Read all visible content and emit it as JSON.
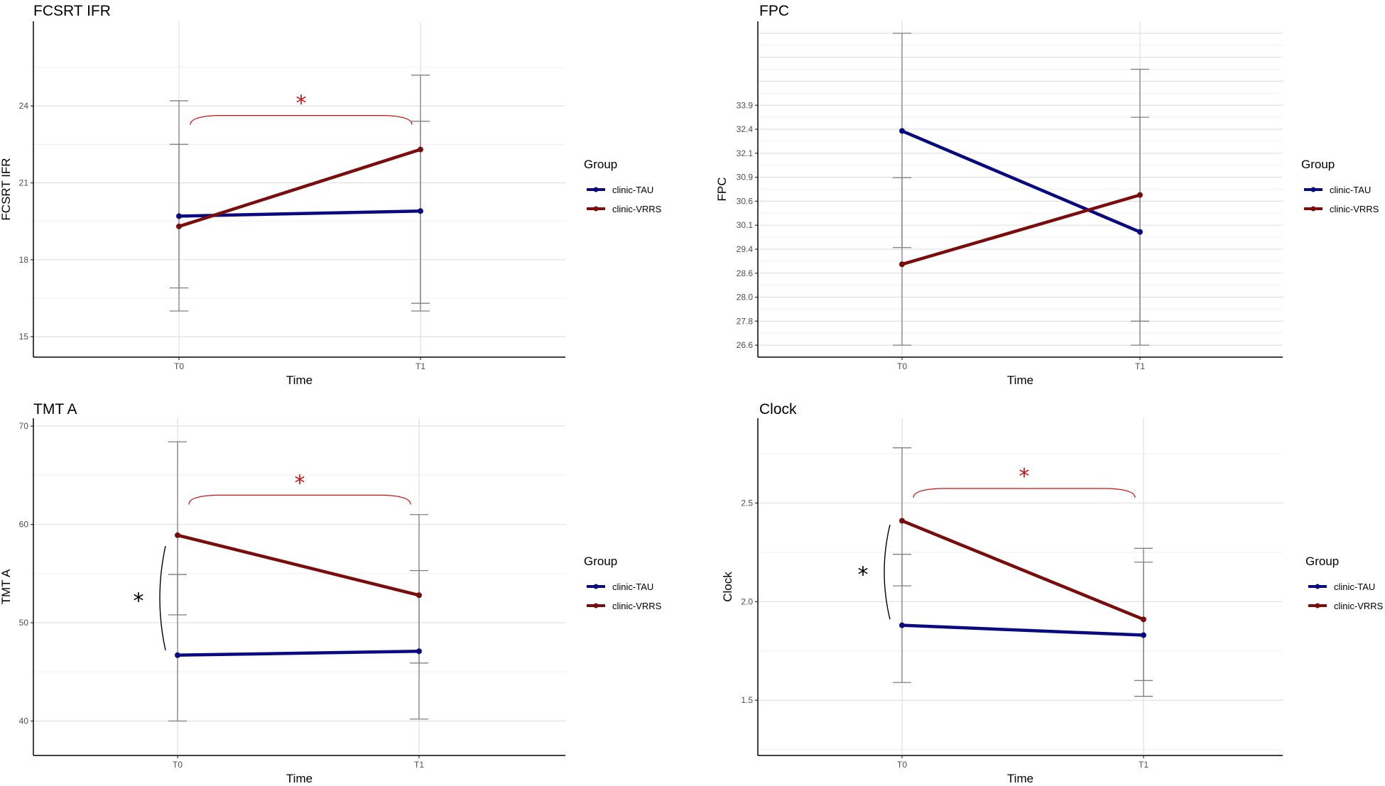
{
  "colors": {
    "clinic-TAU": "#0a0a80",
    "clinic-VRRS": "#7a0c0c",
    "errorbar": "#808080",
    "grid_major": "#e0e0e0",
    "grid_minor": "#f0f0f0",
    "sig_red": "#cc1111",
    "sig_black": "#000000"
  },
  "legend": {
    "title": "Group",
    "entries": [
      "clinic-TAU",
      "clinic-VRRS"
    ]
  },
  "chart_data": [
    {
      "type": "line",
      "title": "FCSRT IFR",
      "xlabel": "Time",
      "ylabel": "FCSRT IFR",
      "categories": [
        "T0",
        "T1"
      ],
      "ylim": [
        14.2,
        27.3
      ],
      "yticks": [
        15,
        18,
        21,
        24
      ],
      "ytick_labels": [
        "15",
        "18",
        "21",
        "24"
      ],
      "series": [
        {
          "name": "clinic-TAU",
          "values": [
            19.7,
            19.9
          ],
          "err_low": [
            16.9,
            16.3
          ],
          "err_high": [
            22.5,
            23.4
          ]
        },
        {
          "name": "clinic-VRRS",
          "values": [
            19.3,
            22.3
          ],
          "err_low": [
            16.0,
            16.0
          ],
          "err_high": [
            24.2,
            25.2
          ]
        }
      ],
      "annotations": [
        {
          "type": "bracket_h",
          "from": "T0",
          "to": "T1",
          "y": 23.6,
          "label": "*",
          "color": "sig_red"
        }
      ]
    },
    {
      "type": "line",
      "title": "FPC",
      "xlabel": "Time",
      "ylabel": "FPC",
      "categories": [
        "T0",
        "T1"
      ],
      "ylim": [
        0,
        14
      ],
      "yticks": [
        0.5,
        1.5,
        2.5,
        3.5,
        4.5,
        5.5,
        6.5,
        7.5,
        8.5,
        9.5,
        10.5,
        11.5,
        12.5,
        13.5
      ],
      "ytick_labels": [
        "26.6",
        "27.8",
        "28.0",
        "28.6",
        "29.4",
        "30.1",
        "30.6",
        "30.9",
        "32.1",
        "32.4",
        "33.9",
        "",
        "",
        ""
      ],
      "series": [
        {
          "name": "clinic-TAU",
          "values": [
            9.43,
            5.22
          ],
          "err_low": [
            4.57,
            0.5
          ],
          "err_high": [
            13.5,
            12.0
          ]
        },
        {
          "name": "clinic-VRRS",
          "values": [
            3.87,
            6.76
          ],
          "err_low": [
            0.5,
            1.5
          ],
          "err_high": [
            7.48,
            10.0
          ]
        }
      ],
      "annotations": []
    },
    {
      "type": "line",
      "title": "TMT A",
      "xlabel": "Time",
      "ylabel": "TMT A",
      "categories": [
        "T0",
        "T1"
      ],
      "ylim": [
        36.5,
        70.8
      ],
      "yticks": [
        40,
        50,
        60,
        70
      ],
      "ytick_labels": [
        "40",
        "50",
        "60",
        "70"
      ],
      "series": [
        {
          "name": "clinic-TAU",
          "values": [
            46.7,
            47.1
          ],
          "err_low": [
            40.0,
            40.2
          ],
          "err_high": [
            54.9,
            55.3
          ]
        },
        {
          "name": "clinic-VRRS",
          "values": [
            58.9,
            52.8
          ],
          "err_low": [
            50.8,
            45.9
          ],
          "err_high": [
            68.4,
            61.0
          ]
        }
      ],
      "annotations": [
        {
          "type": "bracket_h",
          "from": "T0",
          "to": "T1",
          "y": 62.9,
          "label": "*",
          "color": "sig_red"
        },
        {
          "type": "bracket_v",
          "at": "T0",
          "y_from": 47.2,
          "y_to": 57.8,
          "label": "*",
          "color": "sig_black"
        }
      ]
    },
    {
      "type": "line",
      "title": "Clock",
      "xlabel": "Time",
      "ylabel": "Clock",
      "categories": [
        "T0",
        "T1"
      ],
      "ylim": [
        1.22,
        2.93
      ],
      "yticks": [
        1.5,
        2.0,
        2.5
      ],
      "ytick_labels": [
        "1.5",
        "2.0",
        "2.5"
      ],
      "series": [
        {
          "name": "clinic-TAU",
          "values": [
            1.88,
            1.83
          ],
          "err_low": [
            1.59,
            1.52
          ],
          "err_high": [
            2.24,
            2.2
          ]
        },
        {
          "name": "clinic-VRRS",
          "values": [
            2.41,
            1.91
          ],
          "err_low": [
            2.08,
            1.6
          ],
          "err_high": [
            2.78,
            2.27
          ]
        }
      ],
      "annotations": [
        {
          "type": "bracket_h",
          "from": "T0",
          "to": "T1",
          "y": 2.57,
          "label": "*",
          "color": "sig_red"
        },
        {
          "type": "bracket_v",
          "at": "T0",
          "y_from": 1.91,
          "y_to": 2.39,
          "label": "*",
          "color": "sig_black"
        }
      ]
    }
  ]
}
